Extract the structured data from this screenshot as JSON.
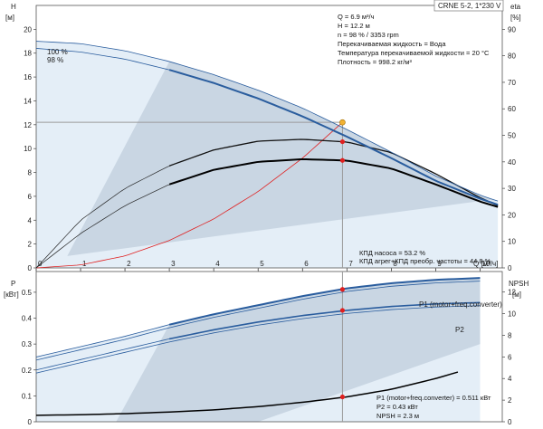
{
  "colors": {
    "region_fill": "#c9d6e3",
    "region_light": "#e4eef7",
    "pump_curve": "#2a5d9e",
    "duty_line": "#9a9a9a",
    "red": "#e01f1f",
    "black": "#000000",
    "duty_marker": "#f2b233"
  },
  "header": {
    "model": "CRNE 5-2, 1*230 V"
  },
  "top_info": [
    "Q = 6.9 м³/ч",
    "H = 12.2 м",
    "n = 98 % / 3353 rpm",
    "Перекачиваемая жидкость = Вода",
    "Температура перекачиваемой жидкости = 20 °C",
    "Плотность = 998.2 кг/м³"
  ],
  "top_eff_info": [
    "КПД насоса = 53.2 %",
    "КПД агрег+КПД преобр. частоты = 44.8 %"
  ],
  "bottom_info": [
    "P1 (motor+freq.converter) = 0.511 кВт",
    "P2 = 0.43 кВт",
    "NPSH = 2.3 м"
  ],
  "chart_data": [
    {
      "type": "line",
      "title": "",
      "xlabel": "Q [м³/ч]",
      "ylabel": "H [м]",
      "y2label": "eta [%]",
      "xlim": [
        0,
        10.5
      ],
      "ylim": [
        0,
        22
      ],
      "y2lim": [
        0,
        99
      ],
      "x_ticks": [
        0,
        1,
        2,
        3,
        4,
        5,
        6,
        7,
        8,
        9,
        10
      ],
      "y_ticks": [
        0,
        2,
        4,
        6,
        8,
        10,
        12,
        14,
        16,
        18,
        20
      ],
      "y2_ticks": [
        0,
        10,
        20,
        30,
        40,
        50,
        60,
        70,
        80,
        90
      ],
      "curve_labels": [
        "100 %",
        "98 %"
      ],
      "series": [
        {
          "name": "100 %",
          "axis": "H",
          "x": [
            0,
            1,
            2,
            3,
            4,
            5,
            6,
            7,
            8,
            9,
            10,
            10.4
          ],
          "values": [
            19.0,
            18.8,
            18.2,
            17.3,
            16.2,
            14.9,
            13.4,
            11.6,
            9.7,
            7.7,
            6.1,
            5.6
          ]
        },
        {
          "name": "98 %",
          "axis": "H",
          "x": [
            0,
            1,
            2,
            3,
            4,
            5,
            6,
            7,
            8,
            9,
            10,
            10.4
          ],
          "values": [
            18.4,
            18.1,
            17.5,
            16.6,
            15.5,
            14.2,
            12.7,
            11.0,
            9.2,
            7.3,
            5.8,
            5.3
          ]
        },
        {
          "name": "",
          "axis": "eta",
          "x": [
            0,
            1,
            2,
            3,
            4,
            5,
            6,
            7,
            8,
            9,
            10,
            10.4
          ],
          "values": [
            0,
            18,
            30,
            38.5,
            44.5,
            47.8,
            48.5,
            47.5,
            43.5,
            35.5,
            26.5,
            23.5
          ]
        },
        {
          "name": "",
          "axis": "eta",
          "x": [
            0,
            1,
            2,
            3,
            4,
            5,
            6,
            7,
            8,
            9,
            10,
            10.4
          ],
          "values": [
            0,
            13,
            23.5,
            31.5,
            37,
            40,
            41,
            40.5,
            37.5,
            31.5,
            25,
            23
          ]
        },
        {
          "name": "",
          "axis": "H",
          "x": [
            0,
            1,
            2,
            3,
            4,
            5,
            6,
            6.9
          ],
          "values": [
            0,
            0.25,
            1.0,
            2.3,
            4.1,
            6.4,
            9.2,
            12.2
          ]
        }
      ],
      "duty_point": {
        "x": 6.9,
        "y": 12.2
      }
    },
    {
      "type": "line",
      "title": "",
      "xlabel": "",
      "ylabel": "P [кВт]",
      "y2label": "NPSH [м]",
      "xlim": [
        0,
        10.5
      ],
      "ylim": [
        0,
        0.58
      ],
      "y2lim": [
        0,
        13.9
      ],
      "y_ticks": [
        0,
        0.1,
        0.2,
        0.3,
        0.4,
        0.5
      ],
      "y2_ticks": [
        0,
        2,
        4,
        6,
        8,
        10,
        12
      ],
      "series": [
        {
          "name": "P1 (motor+freq.converter)",
          "axis": "P",
          "x": [
            0,
            1,
            2,
            3,
            4,
            5,
            6,
            7,
            8,
            9,
            10
          ],
          "values": [
            0.25,
            0.29,
            0.33,
            0.375,
            0.415,
            0.45,
            0.485,
            0.515,
            0.535,
            0.548,
            0.555
          ]
        },
        {
          "name": "P2",
          "axis": "P",
          "x": [
            0,
            1,
            2,
            3,
            4,
            5,
            6,
            7,
            8,
            9,
            10
          ],
          "values": [
            0.2,
            0.24,
            0.28,
            0.32,
            0.355,
            0.385,
            0.41,
            0.43,
            0.445,
            0.455,
            0.46
          ]
        },
        {
          "name": "",
          "axis": "NPSH",
          "x": [
            0,
            1,
            2,
            3,
            4,
            5,
            6,
            7,
            8,
            9,
            9.5
          ],
          "values": [
            0.6,
            0.65,
            0.75,
            0.9,
            1.1,
            1.4,
            1.8,
            2.3,
            3.0,
            4.0,
            4.6
          ]
        }
      ],
      "duty_points": [
        {
          "x": 6.9,
          "P": 0.511
        },
        {
          "x": 6.9,
          "P": 0.43
        },
        {
          "x": 6.9,
          "NPSH": 2.3
        }
      ]
    }
  ]
}
